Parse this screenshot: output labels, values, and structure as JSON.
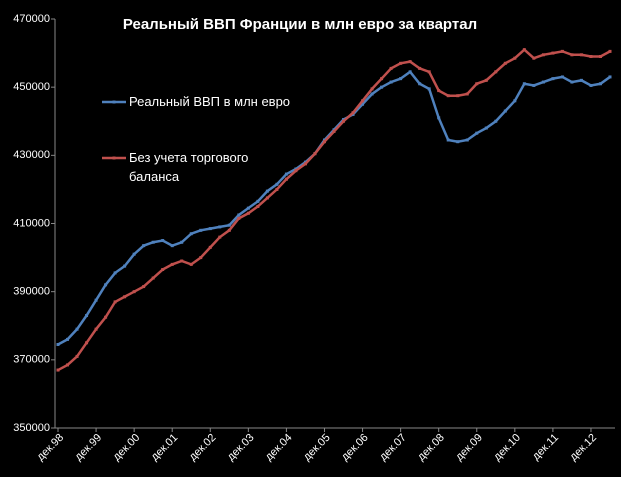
{
  "chart_data": {
    "type": "line",
    "title": "Реальный ВВП Франции в млн евро за квартал",
    "categories": [
      "дек.98",
      null,
      null,
      null,
      "дек.99",
      null,
      null,
      null,
      "дек.00",
      null,
      null,
      null,
      "дек.01",
      null,
      null,
      null,
      "дек.02",
      null,
      null,
      null,
      "дек.03",
      null,
      null,
      null,
      "дек.04",
      null,
      null,
      null,
      "дек.05",
      null,
      null,
      null,
      "дек.06",
      null,
      null,
      null,
      "дек.07",
      null,
      null,
      null,
      "дек.08",
      null,
      null,
      null,
      "дек.09",
      null,
      null,
      null,
      "дек.10",
      null,
      null,
      null,
      "дек.11",
      null,
      null,
      null,
      "дек.12",
      null,
      null
    ],
    "series": [
      {
        "name": "Реальный ВВП в млн евро",
        "color": "#4f81bd",
        "values": [
          374500,
          376000,
          379000,
          383000,
          387500,
          392000,
          395500,
          397500,
          401000,
          403500,
          404500,
          405000,
          403500,
          404500,
          407000,
          408000,
          408500,
          409000,
          409500,
          412500,
          414500,
          416500,
          419500,
          421500,
          424500,
          426000,
          428000,
          430500,
          434500,
          437500,
          440500,
          442000,
          445000,
          448000,
          450000,
          451500,
          452500,
          454500,
          451000,
          449500,
          441000,
          434500,
          434000,
          434500,
          436500,
          438000,
          440000,
          443000,
          446000,
          451000,
          450500,
          451500,
          452500,
          453000,
          451500,
          452000,
          450500,
          451000,
          453000
        ]
      },
      {
        "name": "Без учета торгового баланса",
        "color": "#c0504d",
        "values": [
          367000,
          368500,
          371000,
          375000,
          379000,
          382500,
          387000,
          388500,
          390000,
          391500,
          394000,
          396500,
          398000,
          399000,
          398000,
          400000,
          403000,
          406000,
          408000,
          411500,
          413000,
          415000,
          417500,
          420000,
          423000,
          425500,
          427500,
          430500,
          434000,
          437000,
          440000,
          442500,
          446000,
          449500,
          452500,
          455500,
          457000,
          457500,
          455500,
          454500,
          449000,
          447500,
          447500,
          448000,
          451000,
          452000,
          454500,
          457000,
          458500,
          461000,
          458500,
          459500,
          460000,
          460500,
          459500,
          459500,
          459000,
          459000,
          460500
        ]
      }
    ],
    "ylim": [
      350000,
      470000
    ],
    "yticks": [
      350000,
      370000,
      390000,
      410000,
      430000,
      450000,
      470000
    ]
  }
}
